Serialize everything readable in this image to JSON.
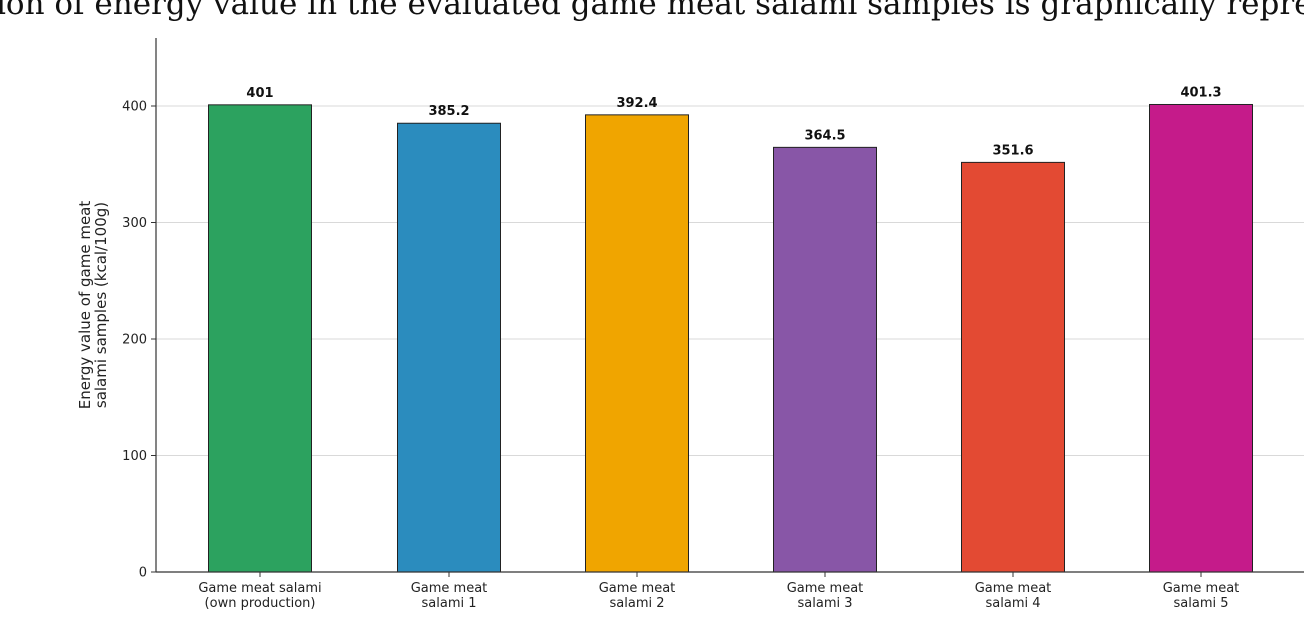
{
  "page_text": "ion of energy value in the evaluated game meat salami samples is graphically repre",
  "chart_data": {
    "type": "bar",
    "categories": [
      [
        "Game meat salami",
        "(own production)"
      ],
      [
        "Game meat",
        "salami 1"
      ],
      [
        "Game meat",
        "salami 2"
      ],
      [
        "Game meat",
        "salami 3"
      ],
      [
        "Game meat",
        "salami 4"
      ],
      [
        "Game meat",
        "salami 5"
      ]
    ],
    "values": [
      401,
      385.2,
      392.4,
      364.5,
      351.6,
      401.3
    ],
    "value_labels": [
      "401",
      "385.2",
      "392.4",
      "364.5",
      "351.6",
      "401.3"
    ],
    "colors": [
      "#2ca25f",
      "#2b8cbe",
      "#f0a500",
      "#8856a7",
      "#e34a33",
      "#c51b8a"
    ],
    "ylabel": [
      "Energy value of game meat",
      "salami samples (kcal/100g)"
    ],
    "yticks": [
      0,
      100,
      200,
      300,
      400
    ],
    "ylim": [
      0,
      460
    ],
    "grid": "horizontal"
  }
}
